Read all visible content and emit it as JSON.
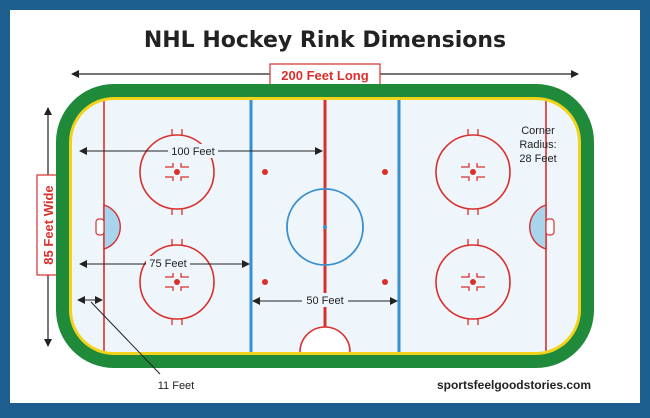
{
  "title": "NHL Hockey Rink Dimensions",
  "labels": {
    "length": "200 Feet Long",
    "width": "85 Feet Wide",
    "corner_line1": "Corner",
    "corner_line2": "Radius:",
    "corner_line3": "28 Feet",
    "dim_100": "100 Feet",
    "dim_75": "75 Feet",
    "dim_50": "50 Feet",
    "dim_11": "11 Feet"
  },
  "footer": "sportsfeelgoodstories.com",
  "colors": {
    "frame": "#1c5f8f",
    "background": "#ffffff",
    "boards": "#1f8a3a",
    "ice": "#eef6fb",
    "red_line": "#d9302c",
    "blue_line": "#3a8fd0",
    "crease": "#a9d4ee",
    "text": "#222222"
  }
}
